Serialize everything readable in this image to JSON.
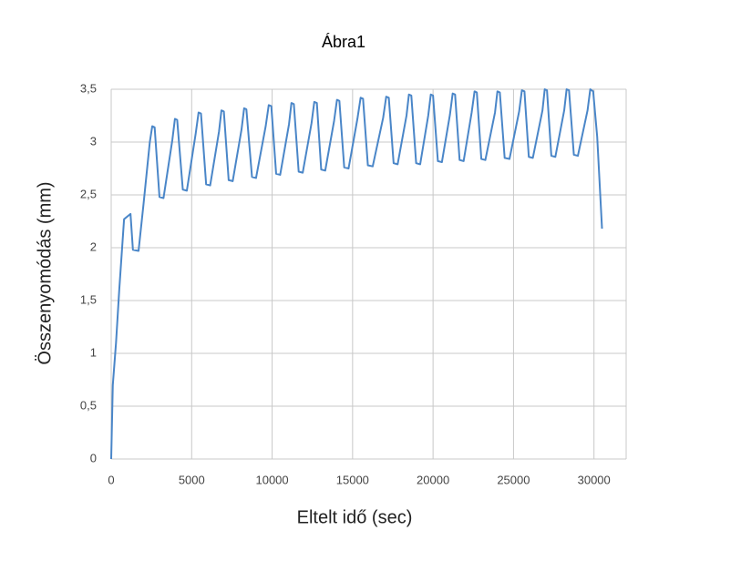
{
  "chart_data": {
    "type": "line",
    "title": "Ábra1",
    "x_label": "Eltelt idő (sec)",
    "y_label": "Összenyomódás (mm)",
    "color": "#4a86c8",
    "grid": true,
    "xlim": [
      0,
      32000
    ],
    "xticks": [
      0,
      5000,
      10000,
      15000,
      20000,
      25000,
      30000
    ],
    "ylim": [
      0,
      3.5
    ],
    "yticks": [
      0,
      {
        "value": 0.5,
        "label": "0,5"
      },
      1,
      {
        "value": 1.5,
        "label": "1,5"
      },
      2,
      {
        "value": 2.5,
        "label": "2,5"
      },
      3,
      {
        "value": 3.5,
        "label": "3,5"
      }
    ],
    "x": [
      0,
      100,
      300,
      500,
      800,
      1200,
      1350,
      1700,
      2000,
      2400,
      2550,
      2700,
      3000,
      3250,
      3800,
      3960,
      4100,
      4450,
      4700,
      5250,
      5430,
      5580,
      5900,
      6150,
      6700,
      6850,
      7000,
      7300,
      7550,
      8100,
      8260,
      8400,
      8750,
      9000,
      9600,
      9790,
      9950,
      10250,
      10500,
      11050,
      11200,
      11350,
      11650,
      11900,
      12450,
      12620,
      12780,
      13050,
      13300,
      13850,
      14030,
      14180,
      14480,
      14750,
      15300,
      15500,
      15650,
      15950,
      16250,
      16900,
      17090,
      17250,
      17550,
      17800,
      18350,
      18500,
      18650,
      18950,
      19200,
      19700,
      19860,
      20000,
      20300,
      20550,
      21050,
      21220,
      21370,
      21650,
      21900,
      22400,
      22580,
      22720,
      23000,
      23250,
      23850,
      24000,
      24150,
      24450,
      24750,
      25350,
      25520,
      25680,
      25950,
      26200,
      26800,
      26940,
      27080,
      27350,
      27600,
      28150,
      28300,
      28450,
      28750,
      29000,
      29600,
      29770,
      29950,
      30200,
      30500
    ],
    "values": [
      0,
      0.7,
      1.1,
      1.6,
      2.27,
      2.32,
      1.98,
      1.97,
      2.4,
      3.0,
      3.15,
      3.14,
      2.48,
      2.47,
      3.02,
      3.22,
      3.21,
      2.55,
      2.54,
      3.08,
      3.28,
      3.27,
      2.6,
      2.59,
      3.1,
      3.3,
      3.29,
      2.64,
      2.63,
      3.12,
      3.32,
      3.31,
      2.67,
      2.66,
      3.15,
      3.35,
      3.34,
      2.7,
      2.69,
      3.17,
      3.37,
      3.36,
      2.72,
      2.71,
      3.18,
      3.38,
      3.37,
      2.74,
      2.73,
      3.2,
      3.4,
      3.39,
      2.76,
      2.75,
      3.22,
      3.42,
      3.41,
      2.78,
      2.77,
      3.23,
      3.43,
      3.42,
      2.8,
      2.79,
      3.25,
      3.45,
      3.44,
      2.8,
      2.79,
      3.25,
      3.45,
      3.44,
      2.82,
      2.81,
      3.26,
      3.46,
      3.45,
      2.83,
      2.82,
      3.28,
      3.48,
      3.47,
      2.84,
      2.83,
      3.28,
      3.48,
      3.47,
      2.85,
      2.84,
      3.29,
      3.49,
      3.48,
      2.86,
      2.85,
      3.3,
      3.5,
      3.49,
      2.87,
      2.86,
      3.3,
      3.5,
      3.49,
      2.88,
      2.87,
      3.3,
      3.5,
      3.48,
      3.05,
      2.18
    ]
  }
}
